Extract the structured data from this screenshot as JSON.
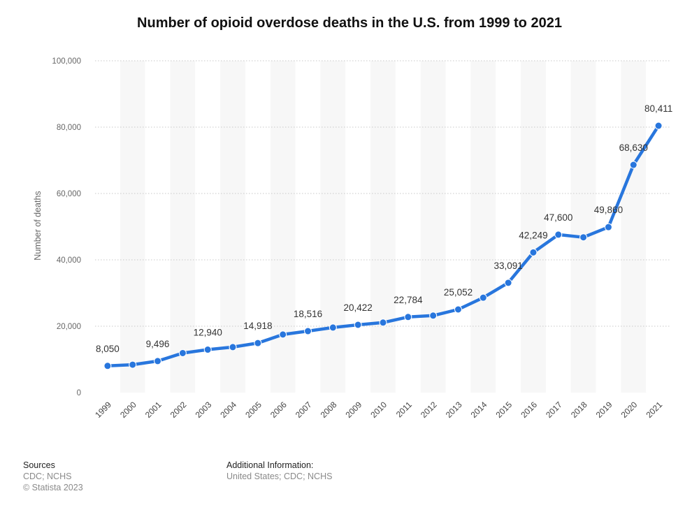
{
  "chart_data": {
    "type": "line",
    "title": "Number of opioid overdose deaths in the U.S. from 1999 to 2021",
    "xlabel": "",
    "ylabel": "Number of deaths",
    "ylim": [
      0,
      100000
    ],
    "yticks": [
      "0",
      "20,000",
      "40,000",
      "60,000",
      "80,000",
      "100,000"
    ],
    "ytick_values": [
      0,
      20000,
      40000,
      60000,
      80000,
      100000
    ],
    "categories": [
      "1999",
      "2000",
      "2001",
      "2002",
      "2003",
      "2004",
      "2005",
      "2006",
      "2007",
      "2008",
      "2009",
      "2010",
      "2011",
      "2012",
      "2013",
      "2014",
      "2015",
      "2016",
      "2017",
      "2018",
      "2019",
      "2020",
      "2021"
    ],
    "values": [
      8050,
      8400,
      9496,
      11900,
      12940,
      13700,
      14918,
      17500,
      18516,
      19600,
      20422,
      21100,
      22784,
      23200,
      25052,
      28600,
      33091,
      42249,
      47600,
      46800,
      49860,
      68630,
      80411
    ],
    "data_labels": [
      "8,050",
      "",
      "9,496",
      "",
      "12,940",
      "",
      "14,918",
      "",
      "18,516",
      "",
      "20,422",
      "",
      "22,784",
      "",
      "25,052",
      "",
      "33,091",
      "42,249",
      "47,600",
      "",
      "49,860",
      "68,630",
      "80,411"
    ],
    "line_color": "#2876dd",
    "grid": true,
    "legend": "none"
  },
  "footer": {
    "sources_heading": "Sources",
    "sources_lines": [
      "CDC; NCHS",
      "© Statista 2023"
    ],
    "additional_heading": "Additional Information:",
    "additional_lines": [
      "United States; CDC; NCHS"
    ]
  }
}
